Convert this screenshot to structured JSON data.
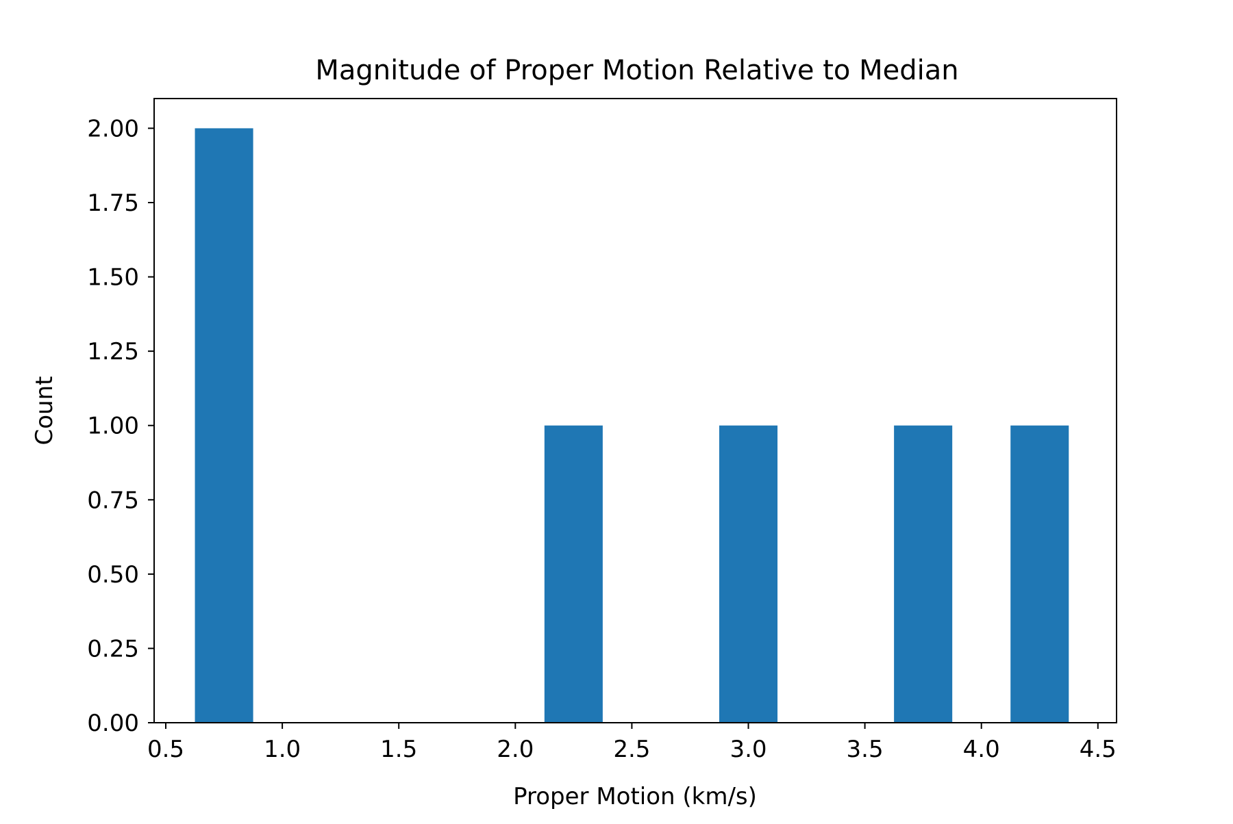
{
  "chart_data": {
    "type": "bar",
    "title": "Magnitude of Proper Motion Relative to Median",
    "xlabel": "Proper Motion (km/s)",
    "ylabel": "Count",
    "xlim": [
      0.45,
      4.58
    ],
    "ylim": [
      0,
      2.1
    ],
    "xticks": [
      "0.5",
      "1.0",
      "1.5",
      "2.0",
      "2.5",
      "3.0",
      "3.5",
      "4.0",
      "4.5"
    ],
    "yticks": [
      "0.00",
      "0.25",
      "0.50",
      "0.75",
      "1.00",
      "1.25",
      "1.50",
      "1.75",
      "2.00"
    ],
    "bin_edges": [
      0.625,
      0.875,
      1.125,
      1.375,
      1.625,
      1.875,
      2.125,
      2.375,
      2.625,
      2.875,
      3.125,
      3.375,
      3.625,
      3.875,
      4.125,
      4.375
    ],
    "values": [
      2,
      0,
      0,
      0,
      0,
      0,
      1,
      0,
      0,
      1,
      0,
      0,
      1,
      0,
      1
    ],
    "bar_color": "#1f77b4",
    "grid": false,
    "legend": "none"
  }
}
